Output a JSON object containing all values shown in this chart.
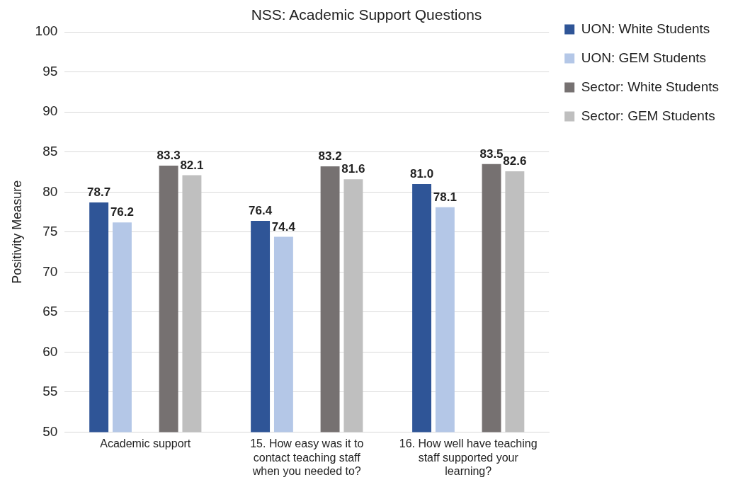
{
  "chart_data": {
    "type": "bar",
    "title": "NSS: Academic Support Questions",
    "ylabel": "Positivity Measure",
    "categories": [
      "Academic support",
      "15. How easy was it to contact teaching staff when you needed to?",
      "16. How well have teaching staff supported your learning?"
    ],
    "series": [
      {
        "name": "UON: White Students",
        "color": "#2f5597",
        "values": [
          78.7,
          76.4,
          81.0
        ],
        "value_labels": [
          "78.7",
          "76.4",
          "81.0"
        ]
      },
      {
        "name": "UON: GEM Students",
        "color": "#b4c7e7",
        "values": [
          76.2,
          74.4,
          78.1
        ],
        "value_labels": [
          "76.2",
          "74.4",
          "78.1"
        ]
      },
      {
        "name": "Sector: White Students",
        "color": "#767171",
        "values": [
          83.3,
          83.2,
          83.5
        ],
        "value_labels": [
          "83.3",
          "83.2",
          "83.5"
        ]
      },
      {
        "name": "Sector: GEM Students",
        "color": "#bfbfbf",
        "values": [
          82.1,
          81.6,
          82.6
        ],
        "value_labels": [
          "82.1",
          "81.6",
          "82.6"
        ]
      }
    ],
    "ylim": [
      50,
      100
    ],
    "yticks": [
      50,
      55,
      60,
      65,
      70,
      75,
      80,
      85,
      90,
      95,
      100
    ],
    "grid": "y",
    "legend": "right"
  }
}
